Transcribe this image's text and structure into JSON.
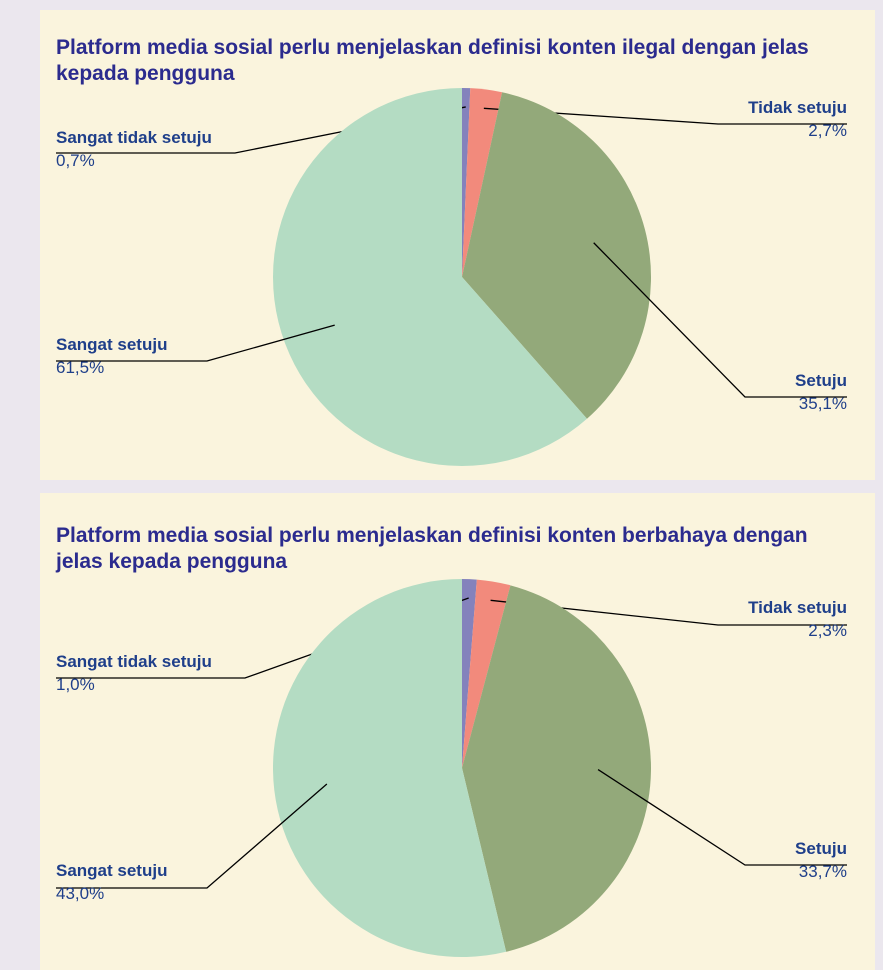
{
  "chart_data": [
    {
      "type": "pie",
      "title": "Platform media sosial perlu menjelaskan definisi konten ilegal dengan jelas kepada pengguna",
      "categories": [
        "Sangat tidak setuju",
        "Tidak setuju",
        "Setuju",
        "Sangat setuju"
      ],
      "values": [
        0.7,
        2.7,
        35.1,
        61.5
      ],
      "value_labels": [
        "0,7%",
        "2,7%",
        "35,1%",
        "61,5%"
      ],
      "colors": [
        "#8482bc",
        "#f28a7c",
        "#93a97a",
        "#b4dcc3"
      ]
    },
    {
      "type": "pie",
      "title": "Platform media sosial perlu menjelaskan definisi konten berbahaya dengan jelas kepada pengguna",
      "categories": [
        "Sangat tidak setuju",
        "Tidak setuju",
        "Setuju",
        "Sangat setuju"
      ],
      "values": [
        1.0,
        2.3,
        33.7,
        43.0
      ],
      "value_labels": [
        "1,0%",
        "2,3%",
        "33,7%",
        "43,0%"
      ],
      "colors": [
        "#8482bc",
        "#f28a7c",
        "#93a97a",
        "#b4dcc3"
      ]
    }
  ]
}
